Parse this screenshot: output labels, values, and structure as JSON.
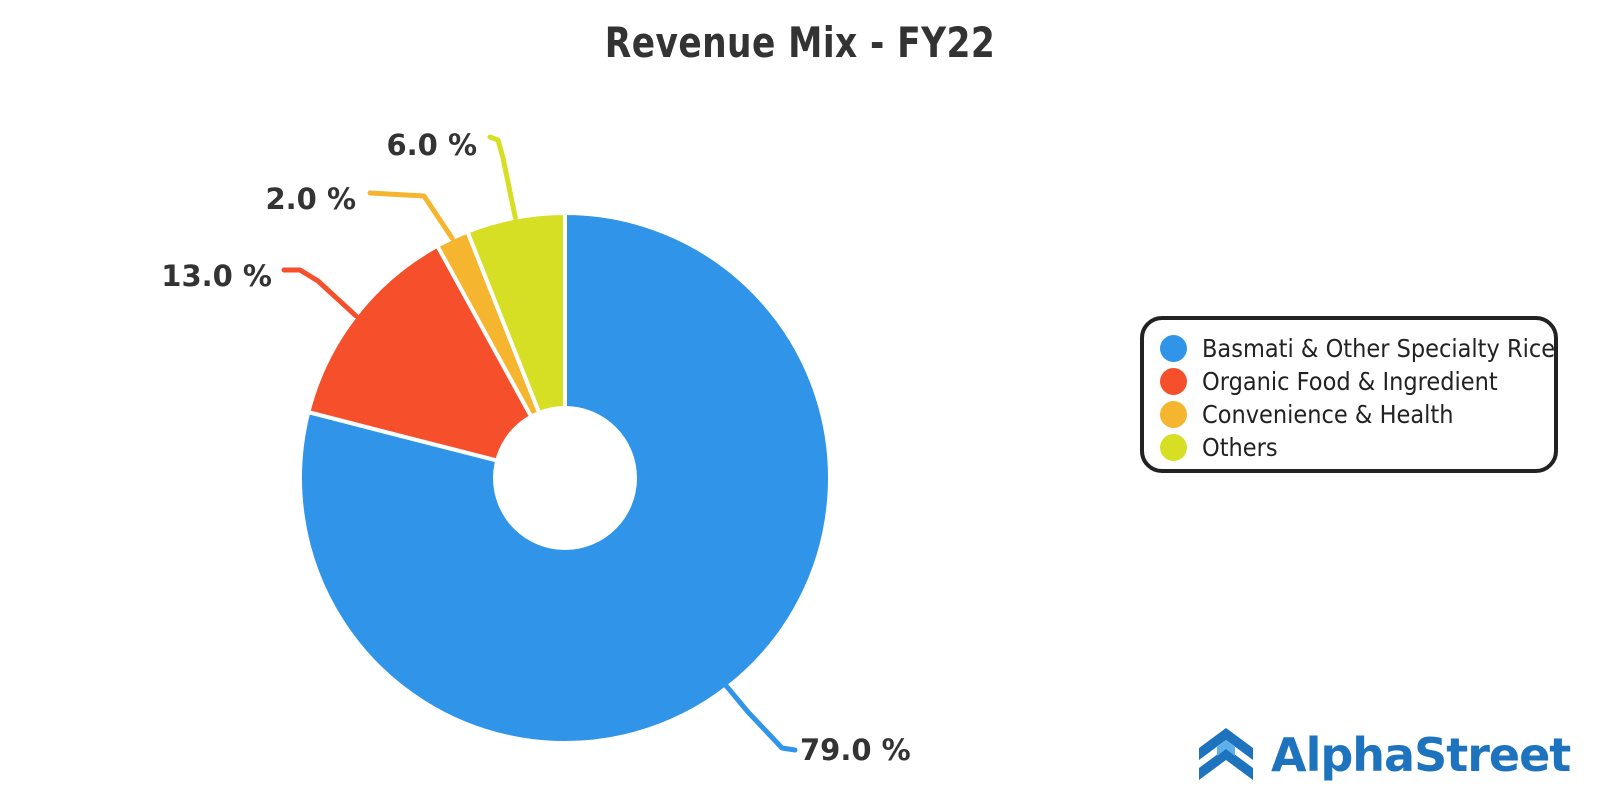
{
  "chart_data": {
    "type": "pie",
    "title": "Revenue Mix - FY22",
    "categories": [
      "Basmati & Other Specialty Rice",
      "Organic Food & Ingredient",
      "Convenience & Health",
      "Others"
    ],
    "values": [
      79.0,
      13.0,
      2.0,
      6.0
    ],
    "data_labels": [
      "79.0 %",
      "13.0 %",
      "2.0 %",
      "6.0 %"
    ],
    "colors": [
      "#3095e8",
      "#f64f2b",
      "#f6b52e",
      "#d6df23"
    ],
    "donut_hole": true,
    "legend": {
      "position": "right",
      "entries": [
        "Basmati & Other Specialty Rice",
        "Organic Food & Ingredient",
        "Convenience & Health",
        "Others"
      ]
    }
  },
  "brand": {
    "name": "AlphaStreet",
    "logo_icon": "alphastreet-logo-icon",
    "color": "#1e73be"
  }
}
